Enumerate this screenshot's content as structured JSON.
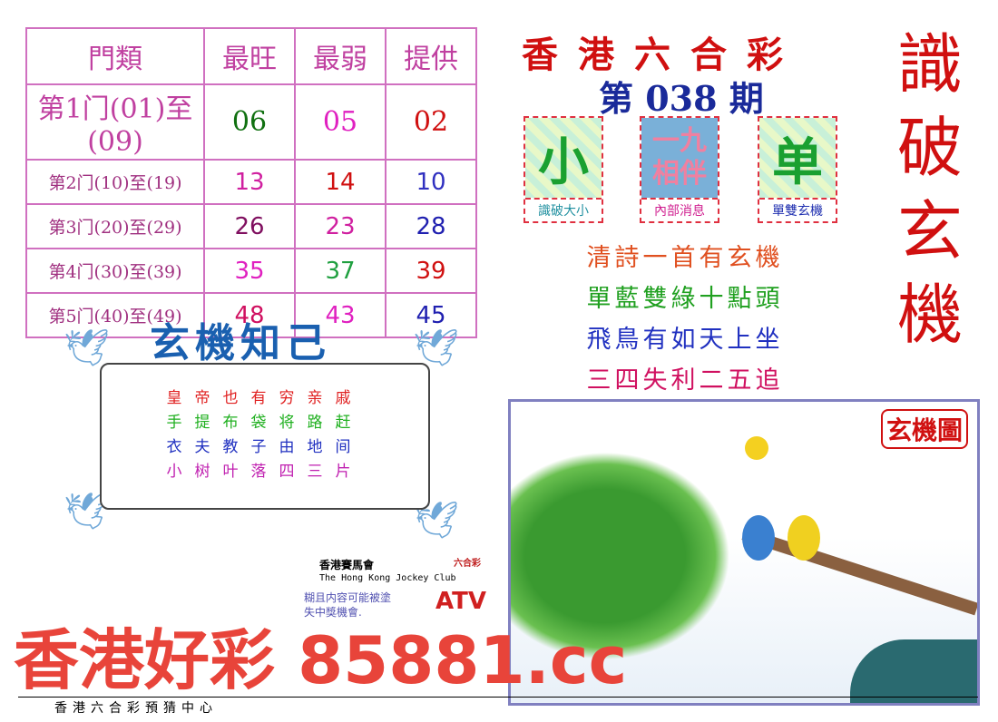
{
  "table": {
    "headers": [
      "門類",
      "最旺",
      "最弱",
      "提供"
    ],
    "rows": [
      {
        "label": "第1门(01)至(09)",
        "values": [
          "06",
          "05",
          "02"
        ],
        "colors": [
          "#107010",
          "#e020c0",
          "#d01010"
        ]
      },
      {
        "label": "第2门(10)至(19)",
        "values": [
          "13",
          "14",
          "10"
        ],
        "colors": [
          "#d020a0",
          "#d01010",
          "#3030c0"
        ]
      },
      {
        "label": "第3门(20)至(29)",
        "values": [
          "26",
          "23",
          "28"
        ],
        "colors": [
          "#801060",
          "#d020a0",
          "#2020b0"
        ]
      },
      {
        "label": "第4门(30)至(39)",
        "values": [
          "35",
          "37",
          "39"
        ],
        "colors": [
          "#e020c0",
          "#20a040",
          "#d01010"
        ]
      },
      {
        "label": "第5门(40)至(49)",
        "values": [
          "48",
          "43",
          "45"
        ],
        "colors": [
          "#d01060",
          "#e020c0",
          "#2020b0"
        ]
      }
    ]
  },
  "header": {
    "title": "香港六合彩",
    "issue": "第 038 期",
    "side": "識破玄機"
  },
  "boxes": [
    {
      "image_text": "小",
      "caption": "識破大小",
      "color": "#2090a0"
    },
    {
      "image_text": "一九相伴",
      "caption": "內部消息",
      "color": "#d02090"
    },
    {
      "image_text": "单",
      "caption": "單雙玄機",
      "color": "#2030b0"
    }
  ],
  "poem": [
    {
      "text": "清詩一首有玄機",
      "color": "#e05020"
    },
    {
      "text": "單藍雙綠十點頭",
      "color": "#20a020"
    },
    {
      "text": "飛鳥有如天上坐",
      "color": "#2030c0"
    },
    {
      "text": "三四失利二五追",
      "color": "#d01060"
    }
  ],
  "scroll": {
    "title": "玄機知己",
    "lines": [
      {
        "text": "皇帝也有穷亲戚",
        "color": "#e02020"
      },
      {
        "text": "手提布袋将路赶",
        "color": "#20b020"
      },
      {
        "text": "衣夫教子由地间",
        "color": "#2030c0"
      },
      {
        "text": "小树叶落四三片",
        "color": "#c020b0"
      }
    ]
  },
  "picture": {
    "label": "玄機圖"
  },
  "jockey": {
    "zh": "香港賽馬會",
    "en": "The Hong Kong Jockey Club",
    "logo": "六合彩"
  },
  "notice": [
    "糊且内容可能被塗",
    "失中獎機會."
  ],
  "atv": "ATV",
  "watermark": "香港好彩 85881.cc",
  "footer": "香港六合彩預猜中心"
}
